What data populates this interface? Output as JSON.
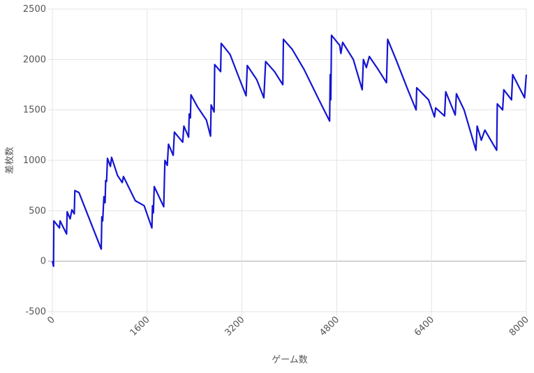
{
  "chart_data": {
    "type": "line",
    "x_label": "ゲーム数",
    "y_label": "差枚数",
    "xlim": [
      0,
      8000
    ],
    "xticks": [
      0,
      1600,
      3200,
      4800,
      6400,
      8000
    ],
    "ylim": [
      -500,
      2500
    ],
    "yticks": [
      -500,
      0,
      500,
      1000,
      1500,
      2000,
      2500
    ],
    "grid": true,
    "series": [
      {
        "name": "差枚数",
        "color": "#1414d2",
        "x": [
          0,
          20,
          25,
          120,
          130,
          240,
          250,
          300,
          330,
          370,
          380,
          450,
          825,
          835,
          850,
          870,
          890,
          900,
          915,
          930,
          980,
          1000,
          1100,
          1180,
          1200,
          1400,
          1550,
          1680,
          1690,
          1705,
          1720,
          1880,
          1900,
          1940,
          1960,
          2040,
          2060,
          2200,
          2220,
          2300,
          2310,
          2330,
          2340,
          2450,
          2600,
          2670,
          2680,
          2730,
          2740,
          2840,
          2850,
          3000,
          3150,
          3270,
          3290,
          3450,
          3570,
          3600,
          3750,
          3890,
          3900,
          4050,
          4250,
          4500,
          4680,
          4690,
          4700,
          4712,
          4850,
          4870,
          4900,
          5080,
          5230,
          5250,
          5300,
          5350,
          5500,
          5640,
          5660,
          5800,
          6000,
          6140,
          6150,
          6350,
          6450,
          6470,
          6620,
          6640,
          6800,
          6820,
          6950,
          7150,
          7170,
          7240,
          7300,
          7500,
          7510,
          7600,
          7620,
          7750,
          7770,
          7970,
          8000
        ],
        "values": [
          0,
          -50,
          400,
          330,
          400,
          270,
          490,
          420,
          510,
          470,
          700,
          680,
          120,
          440,
          400,
          640,
          580,
          800,
          790,
          1020,
          940,
          1030,
          850,
          780,
          840,
          600,
          550,
          330,
          550,
          480,
          740,
          540,
          1000,
          950,
          1160,
          1050,
          1280,
          1180,
          1340,
          1230,
          1460,
          1420,
          1650,
          1530,
          1400,
          1240,
          1550,
          1480,
          1950,
          1880,
          2160,
          2050,
          1820,
          1640,
          1940,
          1800,
          1620,
          1980,
          1880,
          1750,
          2200,
          2100,
          1900,
          1600,
          1390,
          1850,
          1600,
          2240,
          2140,
          2060,
          2170,
          2000,
          1700,
          2000,
          1920,
          2030,
          1900,
          1770,
          2200,
          2000,
          1700,
          1500,
          1720,
          1600,
          1430,
          1520,
          1440,
          1680,
          1450,
          1660,
          1500,
          1100,
          1340,
          1200,
          1300,
          1100,
          1560,
          1500,
          1700,
          1600,
          1850,
          1620,
          1850
        ]
      }
    ]
  }
}
